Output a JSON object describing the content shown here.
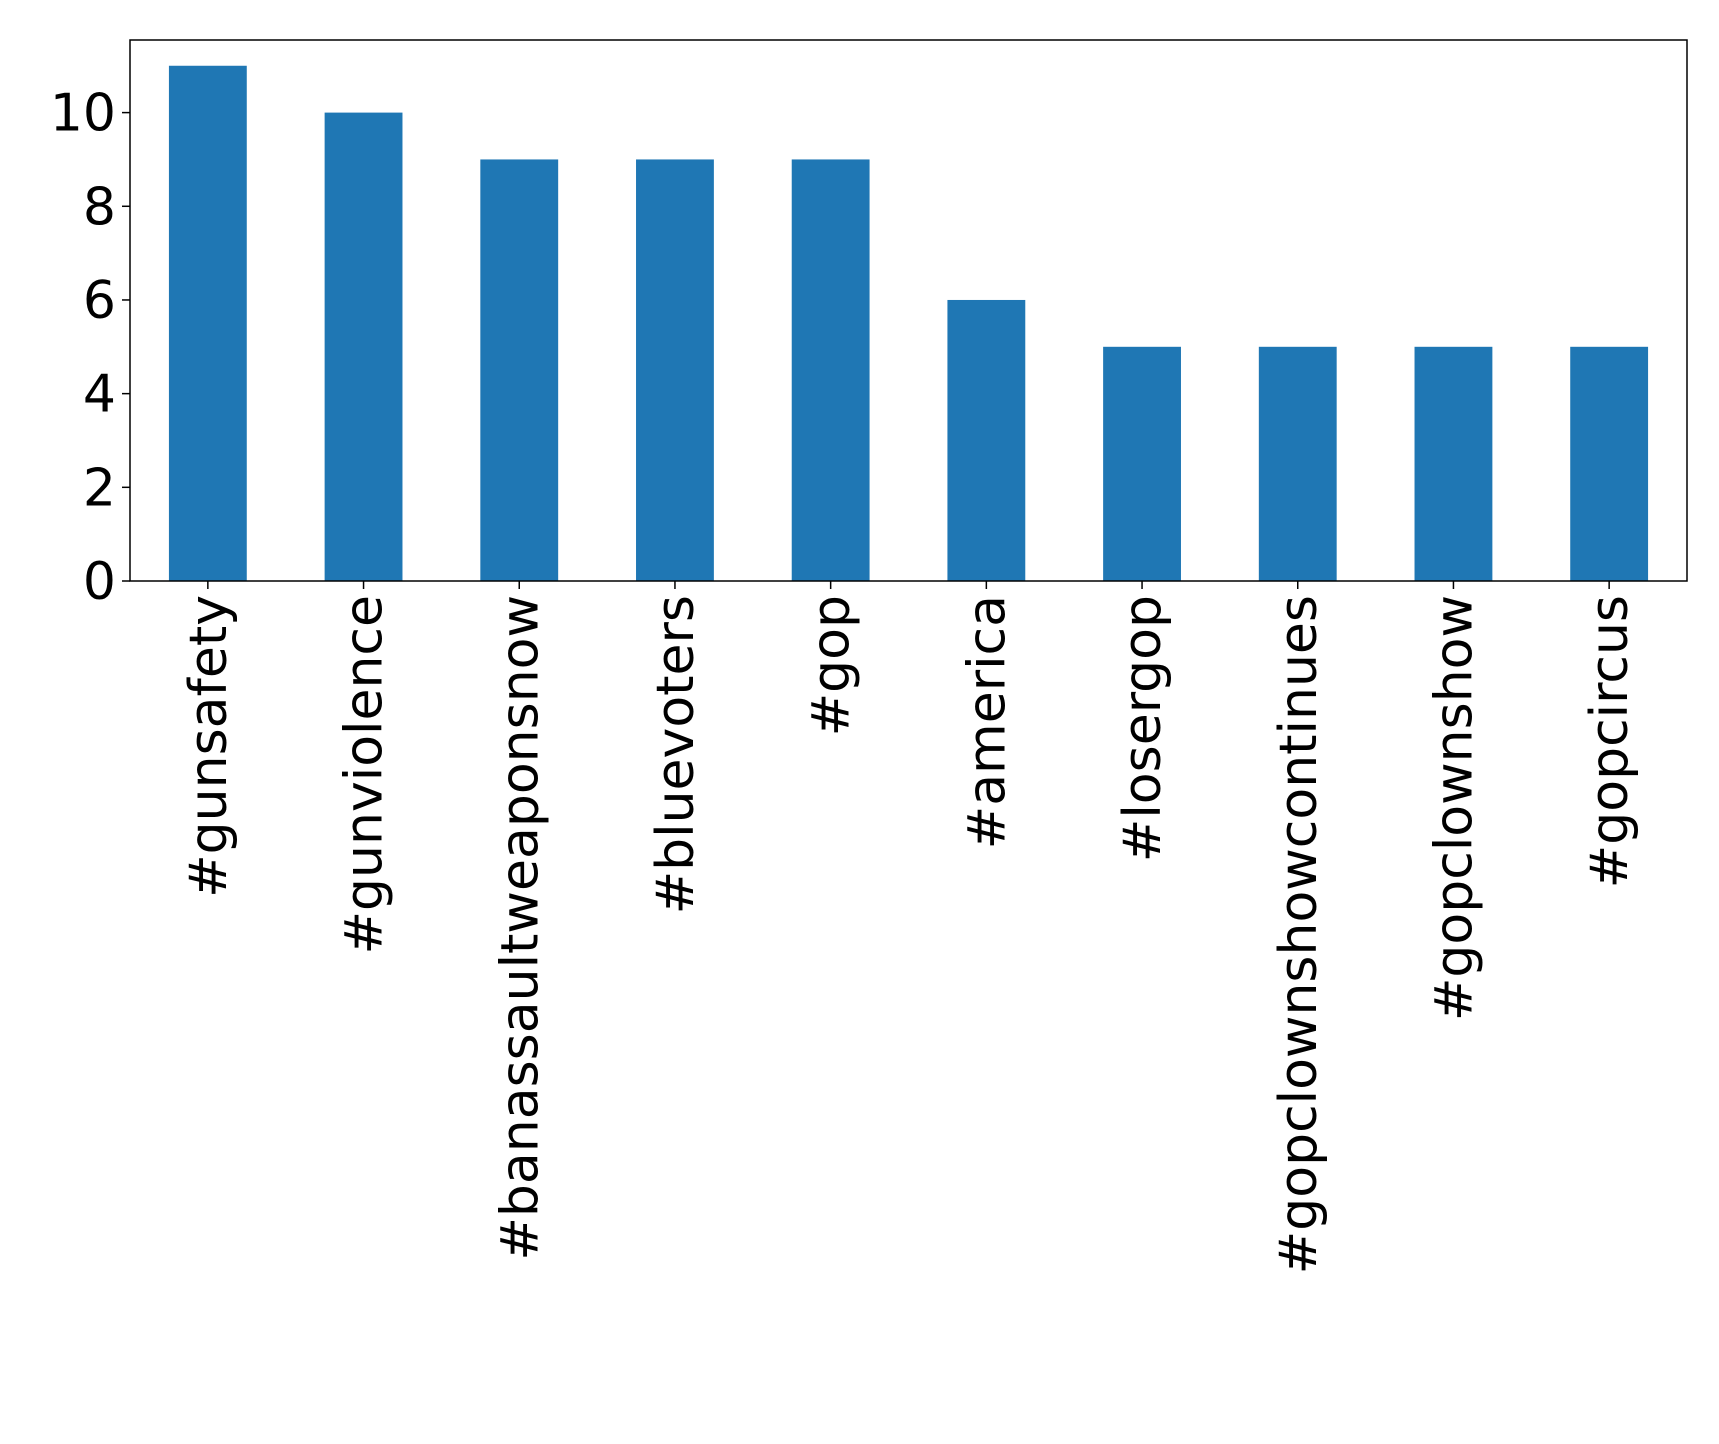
{
  "chart_data": {
    "type": "bar",
    "categories": [
      "#gunsafety",
      "#gunviolence",
      "#banassaultweaponsnow",
      "#bluevoters",
      "#gop",
      "#america",
      "#losergop",
      "#gopclownshowcontinues",
      "#gopclownshow",
      "#gopcircus"
    ],
    "values": [
      11,
      10,
      9,
      9,
      9,
      6,
      5,
      5,
      5,
      5
    ],
    "color": "#1f77b4",
    "ylim": [
      0,
      11.55
    ],
    "yticks": [
      0,
      2,
      4,
      6,
      8,
      10
    ],
    "grid": false
  }
}
